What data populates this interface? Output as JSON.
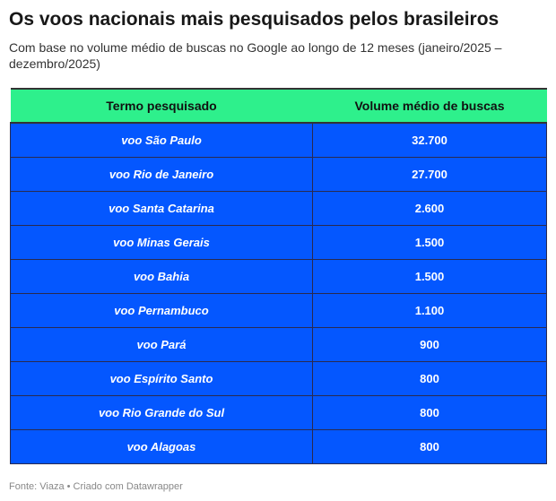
{
  "title": "Os voos nacionais mais pesquisados pelos brasileiros",
  "subtitle": "Com base no volume médio de buscas no Google ao longo de 12 meses (janeiro/2025 – dezembro/2025)",
  "colors": {
    "header_bg": "#2ef08c",
    "row_bg": "#0457ff",
    "row_text": "#ffffff"
  },
  "chart_data": {
    "type": "table",
    "columns": [
      "Termo pesquisado",
      "Volume médio de buscas"
    ],
    "rows": [
      {
        "term": "voo São Paulo",
        "volume": "32.700"
      },
      {
        "term": "voo Rio de Janeiro",
        "volume": "27.700"
      },
      {
        "term": "voo Santa Catarina",
        "volume": "2.600"
      },
      {
        "term": "voo Minas Gerais",
        "volume": "1.500"
      },
      {
        "term": "voo Bahia",
        "volume": "1.500"
      },
      {
        "term": "voo Pernambuco",
        "volume": "1.100"
      },
      {
        "term": "voo Pará",
        "volume": "900"
      },
      {
        "term": "voo Espírito Santo",
        "volume": "800"
      },
      {
        "term": "voo Rio Grande do Sul",
        "volume": "800"
      },
      {
        "term": "voo Alagoas",
        "volume": "800"
      }
    ]
  },
  "footer": "Fonte: Viaza • Criado com Datawrapper"
}
